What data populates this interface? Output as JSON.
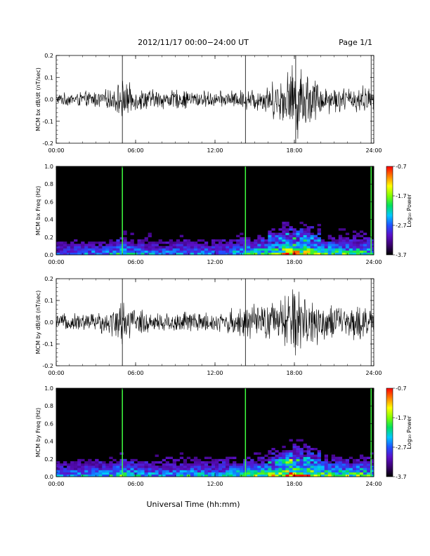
{
  "header": {
    "title": "2012/11/17  00:00−24:00 UT",
    "page": "Page 1/1"
  },
  "footer": {
    "xlabel": "Universal Time (hh:mm)"
  },
  "colors": {
    "trace": "#000000",
    "background_spectrogram": "#000000",
    "colormap": [
      "#000000",
      "#3a006e",
      "#5a10c8",
      "#2050ff",
      "#00c8ff",
      "#00e060",
      "#80ff00",
      "#ffff00",
      "#ff8000",
      "#ff0000"
    ]
  },
  "chart_data": [
    {
      "type": "line",
      "ylabel": "MCM bx dB/dt (nT/sec)",
      "xlim": [
        "00:00",
        "24:00"
      ],
      "ylim": [
        -0.2,
        0.2
      ],
      "x_ticks": [
        "00:00",
        "06:00",
        "12:00",
        "18:00",
        "24:00"
      ],
      "y_ticks": [
        "-0.2",
        "-0.1",
        "0.0",
        "0.1",
        "0.2"
      ],
      "vertical_lines_hours": [
        5.0,
        14.3,
        18.1,
        23.8
      ],
      "series": [
        {
          "x_hours": [
            0,
            2,
            4,
            5,
            6,
            8,
            10,
            12,
            14,
            15,
            16,
            17,
            18,
            18.5,
            19,
            20,
            22,
            23,
            24
          ],
          "envelope": [
            0.03,
            0.04,
            0.05,
            0.1,
            0.06,
            0.05,
            0.05,
            0.04,
            0.05,
            0.06,
            0.08,
            0.12,
            0.2,
            0.18,
            0.16,
            0.08,
            0.06,
            0.08,
            0.05
          ]
        }
      ]
    },
    {
      "type": "heatmap",
      "ylabel": "MCM bx Freq (Hz)",
      "xlim": [
        "00:00",
        "24:00"
      ],
      "ylim": [
        0.0,
        1.0
      ],
      "x_ticks": [
        "00:00",
        "06:00",
        "12:00",
        "18:00",
        "24:00"
      ],
      "y_ticks": [
        "0.0",
        "0.2",
        "0.4",
        "0.6",
        "0.8",
        "1.0"
      ],
      "colorbar": {
        "label": "Log₁₀ Power",
        "ticks": [
          "-0.7",
          "-1.7",
          "-2.7",
          "-3.7"
        ],
        "range": [
          -3.7,
          -0.7
        ]
      },
      "vertical_lines_hours": [
        5.0,
        14.3,
        23.8
      ],
      "activity_hours": [
        0,
        2,
        4,
        5,
        6,
        8,
        10,
        12,
        14,
        15,
        16,
        17,
        18,
        18.5,
        19,
        20,
        22,
        23,
        24
      ],
      "activity_level": [
        0.3,
        0.35,
        0.35,
        0.5,
        0.4,
        0.35,
        0.4,
        0.35,
        0.45,
        0.5,
        0.55,
        0.65,
        0.85,
        0.75,
        0.7,
        0.55,
        0.5,
        0.55,
        0.4
      ]
    },
    {
      "type": "line",
      "ylabel": "MCM by dB/dt (nT/sec)",
      "xlim": [
        "00:00",
        "24:00"
      ],
      "ylim": [
        -0.2,
        0.2
      ],
      "x_ticks": [
        "00:00",
        "06:00",
        "12:00",
        "18:00",
        "24:00"
      ],
      "y_ticks": [
        "-0.2",
        "-0.1",
        "0.0",
        "0.1",
        "0.2"
      ],
      "vertical_lines_hours": [
        5.0,
        14.3,
        23.8
      ],
      "series": [
        {
          "x_hours": [
            0,
            2,
            4,
            5,
            6,
            8,
            10,
            12,
            14,
            15,
            16,
            17,
            18,
            18.5,
            19,
            20,
            22,
            23,
            24
          ],
          "envelope": [
            0.04,
            0.05,
            0.06,
            0.12,
            0.07,
            0.05,
            0.06,
            0.05,
            0.08,
            0.09,
            0.1,
            0.12,
            0.2,
            0.17,
            0.16,
            0.1,
            0.08,
            0.1,
            0.06
          ]
        }
      ]
    },
    {
      "type": "heatmap",
      "ylabel": "MCM by Freq (Hz)",
      "xlim": [
        "00:00",
        "24:00"
      ],
      "ylim": [
        0.0,
        1.0
      ],
      "x_ticks": [
        "00:00",
        "06:00",
        "12:00",
        "18:00",
        "24:00"
      ],
      "y_ticks": [
        "0.0",
        "0.2",
        "0.4",
        "0.6",
        "0.8",
        "1.0"
      ],
      "colorbar": {
        "label": "Log₁₀ Power",
        "ticks": [
          "-0.7",
          "-1.7",
          "-2.7",
          "-3.7"
        ],
        "range": [
          -3.7,
          -0.7
        ]
      },
      "vertical_lines_hours": [
        5.0,
        14.3,
        23.8
      ],
      "activity_hours": [
        0,
        2,
        4,
        5,
        6,
        8,
        10,
        12,
        14,
        15,
        16,
        17,
        18,
        18.5,
        19,
        20,
        22,
        23,
        24
      ],
      "activity_level": [
        0.35,
        0.4,
        0.4,
        0.55,
        0.45,
        0.4,
        0.45,
        0.4,
        0.5,
        0.55,
        0.6,
        0.7,
        0.9,
        0.8,
        0.75,
        0.6,
        0.55,
        0.6,
        0.45
      ]
    }
  ]
}
